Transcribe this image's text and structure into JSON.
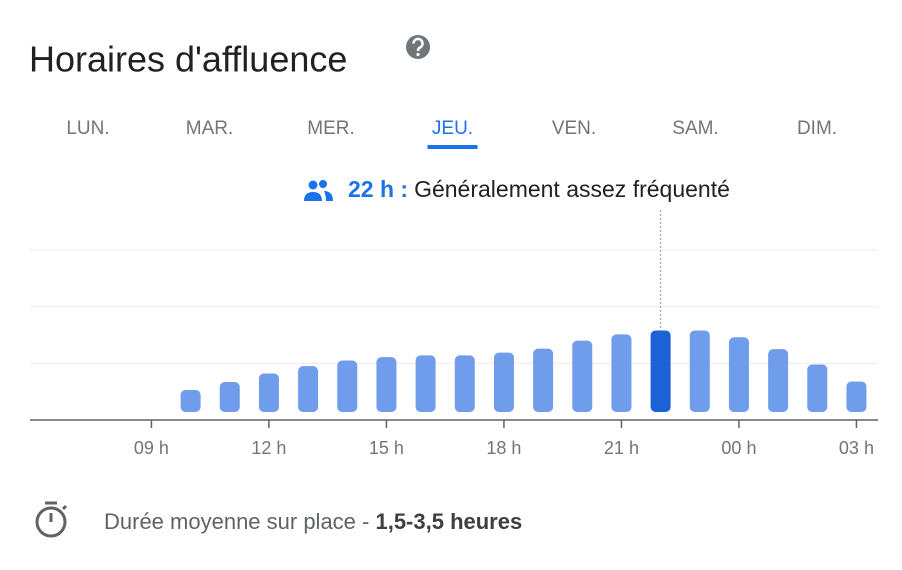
{
  "header": {
    "title": "Horaires d'affluence"
  },
  "days": {
    "items": [
      "LUN.",
      "MAR.",
      "MER.",
      "JEU.",
      "VEN.",
      "SAM.",
      "DIM."
    ],
    "selected": 3
  },
  "tooltip": {
    "hour": "22 h :",
    "text": "Généralement assez fréquenté"
  },
  "chart_data": {
    "type": "bar",
    "x": [
      10,
      11,
      12,
      13,
      14,
      15,
      16,
      17,
      18,
      19,
      20,
      21,
      22,
      23,
      24,
      25,
      26,
      27
    ],
    "values": [
      0.53,
      0.67,
      0.82,
      0.95,
      1.05,
      1.11,
      1.14,
      1.14,
      1.19,
      1.26,
      1.4,
      1.51,
      1.58,
      1.58,
      1.46,
      1.25,
      0.98,
      0.68
    ],
    "color": "#6f9ceb",
    "highlight_color": "#1a62d6",
    "highlight_index": 12,
    "xlim": [
      5.9,
      27.55
    ],
    "xticks": [
      {
        "value": 9,
        "label": "09 h"
      },
      {
        "value": 12,
        "label": "12 h"
      },
      {
        "value": 15,
        "label": "15 h"
      },
      {
        "value": 18,
        "label": "18 h"
      },
      {
        "value": 21,
        "label": "21 h"
      },
      {
        "value": 24,
        "label": "00 h"
      },
      {
        "value": 27,
        "label": "03 h"
      }
    ],
    "ylim": [
      0,
      3
    ],
    "yticks": [
      0,
      1,
      2,
      3
    ],
    "grid": true
  },
  "footer": {
    "label": "Durée moyenne sur place - ",
    "value": "1,5-3,5 heures"
  }
}
